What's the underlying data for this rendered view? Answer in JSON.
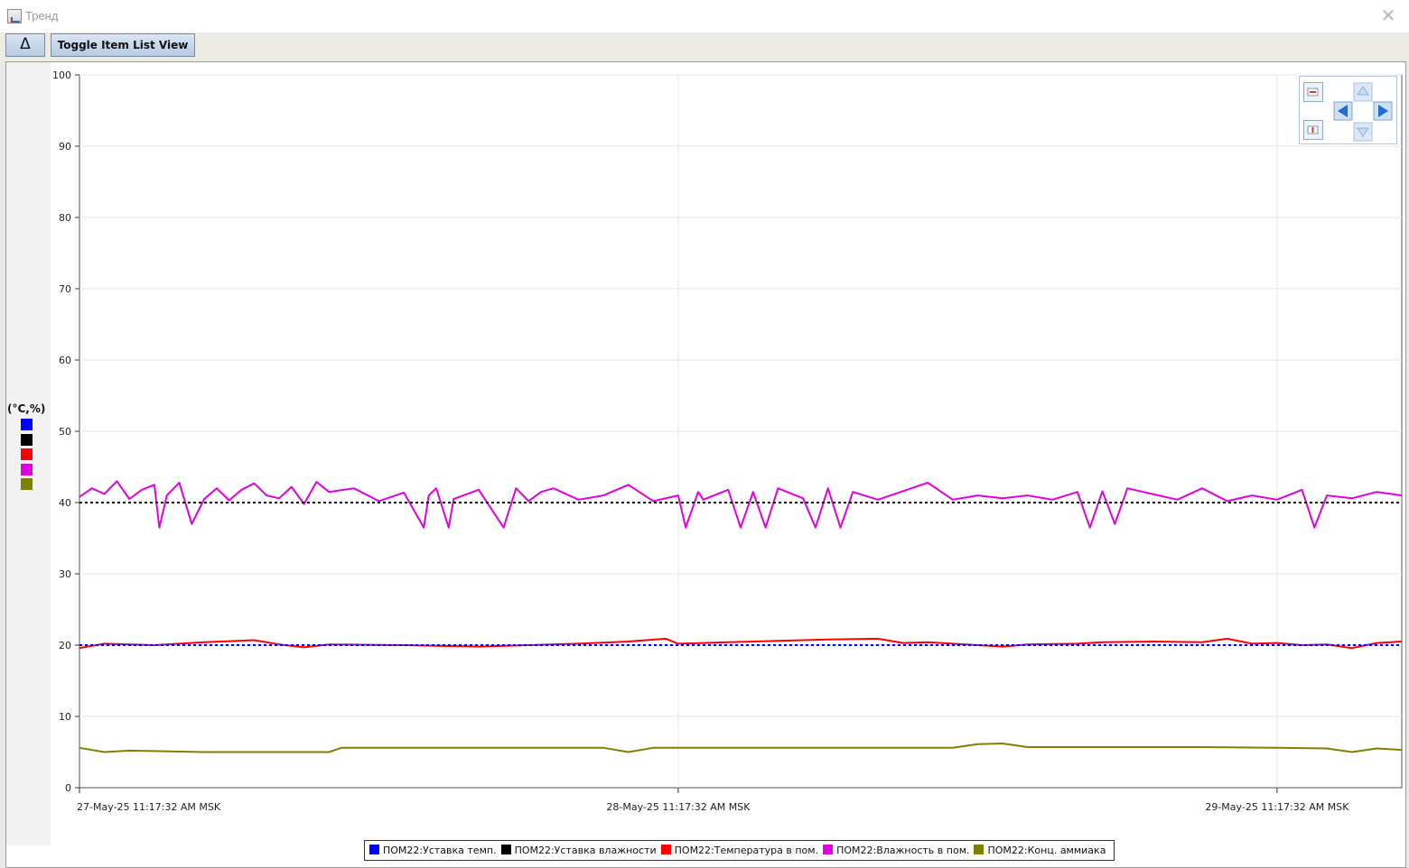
{
  "window": {
    "title": "Тренд",
    "close_glyph": "✕",
    "icon": "trend-window-icon"
  },
  "toolbar": {
    "delta_label": "Δ",
    "toggle_label": "Toggle Item List View"
  },
  "axis": {
    "unit_label": "(°C,%)"
  },
  "legend": [
    {
      "label": "ПОМ22:Уставка темп.",
      "color": "#0000ff"
    },
    {
      "label": "ПОМ22:Уставка влажности",
      "color": "#000000"
    },
    {
      "label": "ПОМ22:Температура в пом.",
      "color": "#ff0000"
    },
    {
      "label": "ПОМ22:Влажность в пом.",
      "color": "#e000e0"
    },
    {
      "label": "ПОМ22:Конц. аммиака",
      "color": "#808000"
    }
  ],
  "chart_data": {
    "type": "line",
    "y_ticks": [
      "0",
      "10",
      "20",
      "30",
      "40",
      "50",
      "60",
      "70",
      "80",
      "90",
      "100"
    ],
    "ylim": [
      0,
      100
    ],
    "x_tick_labels": [
      "27-May-25 11:17:32 AM MSK",
      "28-May-25 11:17:32 AM MSK",
      "29-May-25 11:17:32 AM MSK"
    ],
    "x_tick_positions_hours": [
      0,
      24,
      48
    ],
    "xlim_hours": [
      0,
      53
    ],
    "grid": true,
    "series": [
      {
        "name": "ПОМ22:Уставка темп.",
        "color": "#0000ff",
        "style": "dotted",
        "x": [
          0,
          53
        ],
        "y": [
          20,
          20
        ]
      },
      {
        "name": "ПОМ22:Уставка влажности",
        "color": "#000000",
        "style": "dotted",
        "x": [
          0,
          53
        ],
        "y": [
          40,
          40
        ]
      },
      {
        "name": "ПОМ22:Температура в пом.",
        "color": "#ff0000",
        "style": "solid",
        "x": [
          0,
          1,
          3,
          5,
          7,
          8,
          9,
          10,
          13,
          16,
          20,
          22,
          23.5,
          24,
          26,
          28,
          30,
          32,
          33,
          34,
          36,
          37,
          38,
          40,
          41,
          43,
          45,
          46,
          47,
          48,
          49,
          50,
          51,
          52,
          53
        ],
        "y": [
          19.6,
          20.2,
          20.0,
          20.4,
          20.7,
          20.1,
          19.7,
          20.1,
          20.0,
          19.8,
          20.2,
          20.5,
          20.9,
          20.2,
          20.4,
          20.6,
          20.8,
          20.9,
          20.3,
          20.4,
          20.0,
          19.8,
          20.1,
          20.2,
          20.4,
          20.5,
          20.4,
          20.9,
          20.2,
          20.3,
          20.0,
          20.1,
          19.6,
          20.3,
          20.5
        ]
      },
      {
        "name": "ПОМ22:Влажность в пом.",
        "color": "#e000e0",
        "style": "solid",
        "x": [
          0,
          0.5,
          1,
          1.5,
          2,
          2.5,
          3,
          3.2,
          3.5,
          4,
          4.5,
          5,
          5.5,
          6,
          6.5,
          7,
          7.5,
          8,
          8.5,
          9,
          9.5,
          10,
          11,
          12,
          13,
          13.8,
          14,
          14.3,
          14.8,
          15,
          16,
          17,
          17.5,
          18,
          18.5,
          19,
          20,
          21,
          22,
          23,
          24,
          24.3,
          24.8,
          25,
          26,
          26.5,
          27,
          27.5,
          28,
          29,
          29.5,
          30,
          30.5,
          31,
          32,
          33,
          34,
          35,
          36,
          37,
          38,
          39,
          40,
          40.5,
          41,
          41.5,
          42,
          43,
          44,
          45,
          46,
          47,
          48,
          49,
          49.5,
          50,
          51,
          52,
          53
        ],
        "y": [
          40.8,
          42.0,
          41.2,
          43.0,
          40.5,
          41.8,
          42.5,
          36.5,
          41.0,
          42.8,
          37.0,
          40.5,
          42.0,
          40.3,
          41.8,
          42.7,
          41.0,
          40.6,
          42.2,
          39.8,
          42.9,
          41.5,
          42.0,
          40.2,
          41.4,
          36.5,
          41.0,
          42.0,
          36.5,
          40.5,
          41.8,
          36.5,
          42.0,
          40.2,
          41.5,
          42.0,
          40.4,
          41.0,
          42.5,
          40.2,
          41.0,
          36.5,
          41.5,
          40.4,
          41.8,
          36.5,
          41.5,
          36.5,
          42.0,
          40.6,
          36.5,
          42.0,
          36.5,
          41.5,
          40.4,
          41.6,
          42.8,
          40.4,
          41.0,
          40.6,
          41.0,
          40.4,
          41.5,
          36.5,
          41.6,
          37.0,
          42.0,
          41.2,
          40.4,
          42.0,
          40.2,
          41.0,
          40.4,
          41.8,
          36.5,
          41.0,
          40.6,
          41.5,
          41.0
        ]
      },
      {
        "name": "ПОМ22:Конц. аммиака",
        "color": "#808000",
        "style": "solid",
        "x": [
          0,
          1,
          2,
          5,
          10,
          10.5,
          21,
          22,
          23,
          35,
          36,
          37,
          38,
          39,
          45,
          48,
          50,
          51,
          52,
          53
        ],
        "y": [
          5.6,
          5.0,
          5.2,
          5.0,
          5.0,
          5.6,
          5.6,
          5.0,
          5.6,
          5.6,
          6.1,
          6.2,
          5.7,
          5.7,
          5.7,
          5.6,
          5.5,
          5.0,
          5.5,
          5.3
        ]
      }
    ]
  }
}
